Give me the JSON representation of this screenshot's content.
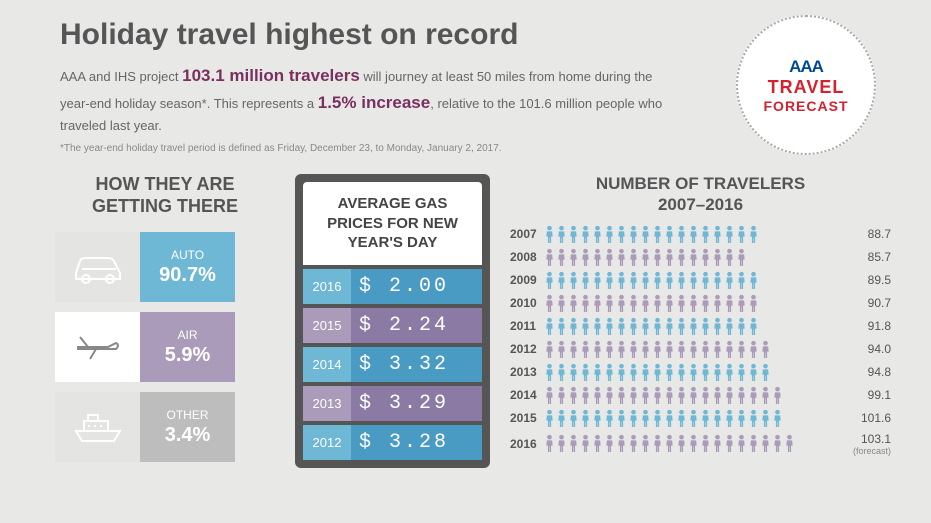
{
  "header": {
    "title": "Holiday travel highest on record",
    "intro_part1": "AAA and IHS project ",
    "intro_highlight1": "103.1 million travelers",
    "intro_part2": " will journey at least 50 miles from home during the year-end holiday season*. This represents a ",
    "intro_highlight2": "1.5% increase",
    "intro_part3": ", relative to the 101.6 million people who traveled last year.",
    "footnote": "*The year-end holiday travel period is defined as Friday, December 23, to Monday, January 2, 2017."
  },
  "badge": {
    "aaa": "AAA",
    "line1": "TRAVEL",
    "line2": "FORECAST"
  },
  "modes": {
    "title1": "HOW THEY ARE",
    "title2": "GETTING THERE",
    "items": [
      {
        "name": "AUTO",
        "pct": "90.7%",
        "icon_bg": "#e4e4e2",
        "label_bg": "#6eb8d6",
        "icon": "car"
      },
      {
        "name": "AIR",
        "pct": "5.9%",
        "icon_bg": "#ffffff",
        "label_bg": "#a99bb9",
        "icon": "plane"
      },
      {
        "name": "OTHER",
        "pct": "3.4%",
        "icon_bg": "#e4e4e2",
        "label_bg": "#bdbdbd",
        "icon": "ship"
      }
    ]
  },
  "gas": {
    "title": "AVERAGE GAS PRICES FOR NEW YEAR'S DAY",
    "rows": [
      {
        "year": "2016",
        "price": "$ 2.00",
        "yr_bg": "#6eb8d6",
        "pr_bg": "#4a9bc4"
      },
      {
        "year": "2015",
        "price": "$ 2.24",
        "yr_bg": "#a99bb9",
        "pr_bg": "#8b7aa3"
      },
      {
        "year": "2014",
        "price": "$ 3.32",
        "yr_bg": "#6eb8d6",
        "pr_bg": "#4a9bc4"
      },
      {
        "year": "2013",
        "price": "$ 3.29",
        "yr_bg": "#a99bb9",
        "pr_bg": "#8b7aa3"
      },
      {
        "year": "2012",
        "price": "$ 3.28",
        "yr_bg": "#6eb8d6",
        "pr_bg": "#4a9bc4"
      }
    ]
  },
  "travelers": {
    "title1": "NUMBER OF TRAVELERS",
    "title2": "2007–2016",
    "color_a": "#6eb8d6",
    "color_b": "#a99bb9",
    "max_icons": 21,
    "rows": [
      {
        "year": "2007",
        "value": "88.7",
        "count": 18
      },
      {
        "year": "2008",
        "value": "85.7",
        "count": 17
      },
      {
        "year": "2009",
        "value": "89.5",
        "count": 18
      },
      {
        "year": "2010",
        "value": "90.7",
        "count": 18
      },
      {
        "year": "2011",
        "value": "91.8",
        "count": 18
      },
      {
        "year": "2012",
        "value": "94.0",
        "count": 19
      },
      {
        "year": "2013",
        "value": "94.8",
        "count": 19
      },
      {
        "year": "2014",
        "value": "99.1",
        "count": 20
      },
      {
        "year": "2015",
        "value": "101.6",
        "count": 20
      },
      {
        "year": "2016",
        "value": "103.1",
        "count": 21,
        "sub": "(forecast)"
      }
    ]
  }
}
